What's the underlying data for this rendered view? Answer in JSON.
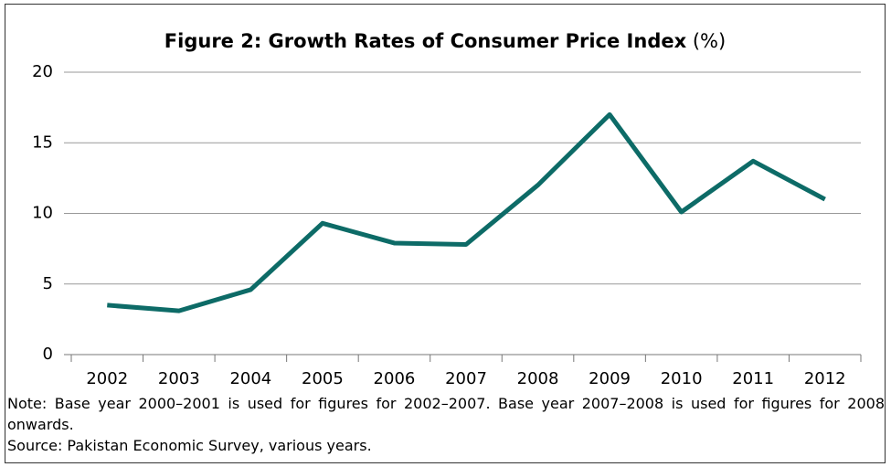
{
  "chart_data": {
    "type": "line",
    "title": "Figure 2: Growth Rates of Consumer Price Index",
    "title_unit": "(%)",
    "categories": [
      "2002",
      "2003",
      "2004",
      "2005",
      "2006",
      "2007",
      "2008",
      "2009",
      "2010",
      "2011",
      "2012"
    ],
    "series": [
      {
        "color": "#0d6b67",
        "values": [
          3.5,
          3.1,
          4.6,
          9.3,
          7.9,
          7.8,
          12.0,
          17.0,
          10.1,
          13.7,
          11.0
        ]
      }
    ],
    "ylim": [
      0,
      20
    ],
    "yticks": [
      0,
      5,
      10,
      15,
      20
    ],
    "grid": true,
    "notes": [
      "Note: Base year 2000–2001 is used for figures for 2002–2007. Base year 2007–2008 is used for figures for 2008 onwards.",
      "Source: Pakistan Economic Survey, various years."
    ]
  }
}
